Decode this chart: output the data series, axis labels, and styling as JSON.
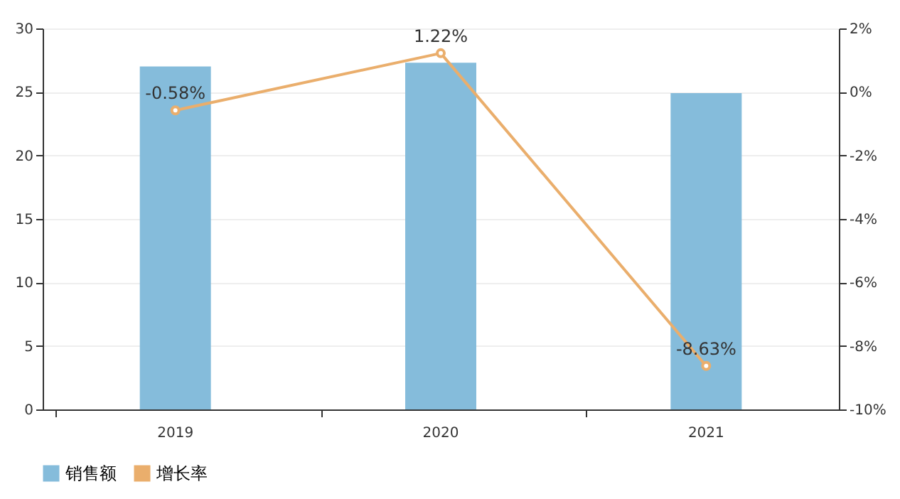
{
  "chart_data": {
    "type": "bar",
    "categories": [
      "2019",
      "2020",
      "2021"
    ],
    "series": [
      {
        "name": "销售额",
        "color": "#85bcdb",
        "values": [
          27.0,
          27.3,
          24.9
        ]
      },
      {
        "name": "增长率",
        "type": "line",
        "axis": "y2",
        "color": "#eaae6c",
        "marker": "circle",
        "values": [
          -0.58,
          1.22,
          -8.63
        ],
        "value_labels": [
          "-0.58%",
          "1.22%",
          "-8.63%"
        ]
      }
    ],
    "ylim": [
      0,
      30
    ],
    "yticks": [
      0,
      5,
      10,
      15,
      20,
      25,
      30
    ],
    "y2lim": [
      -10,
      2
    ],
    "y2ticks": [
      {
        "value": -10,
        "label": "-10%"
      },
      {
        "value": -8,
        "label": "-8%"
      },
      {
        "value": -6,
        "label": "-6%"
      },
      {
        "value": -4,
        "label": "-4%"
      },
      {
        "value": -2,
        "label": "-2%"
      },
      {
        "value": 0,
        "label": "0%"
      },
      {
        "value": 2,
        "label": "2%"
      }
    ],
    "grid": "y",
    "legend": "bottom"
  }
}
